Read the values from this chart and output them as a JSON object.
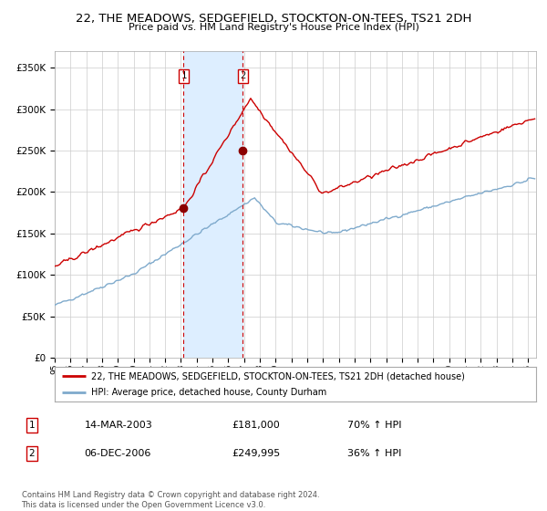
{
  "title": "22, THE MEADOWS, SEDGEFIELD, STOCKTON-ON-TEES, TS21 2DH",
  "subtitle": "Price paid vs. HM Land Registry's House Price Index (HPI)",
  "legend_line1": "22, THE MEADOWS, SEDGEFIELD, STOCKTON-ON-TEES, TS21 2DH (detached house)",
  "legend_line2": "HPI: Average price, detached house, County Durham",
  "transaction1_date": "14-MAR-2003",
  "transaction1_price": 181000,
  "transaction1_pct": "70% ↑ HPI",
  "transaction2_date": "06-DEC-2006",
  "transaction2_price": 249995,
  "transaction2_pct": "36% ↑ HPI",
  "footnote": "Contains HM Land Registry data © Crown copyright and database right 2024.\nThis data is licensed under the Open Government Licence v3.0.",
  "ylim": [
    0,
    370000
  ],
  "red_color": "#cc0000",
  "blue_color": "#7faacc",
  "shade_color": "#ddeeff",
  "dashed_color": "#cc0000",
  "background_color": "#ffffff",
  "grid_color": "#cccccc",
  "t1_year": 2003,
  "t1_month": 3,
  "t2_year": 2006,
  "t2_month": 12
}
